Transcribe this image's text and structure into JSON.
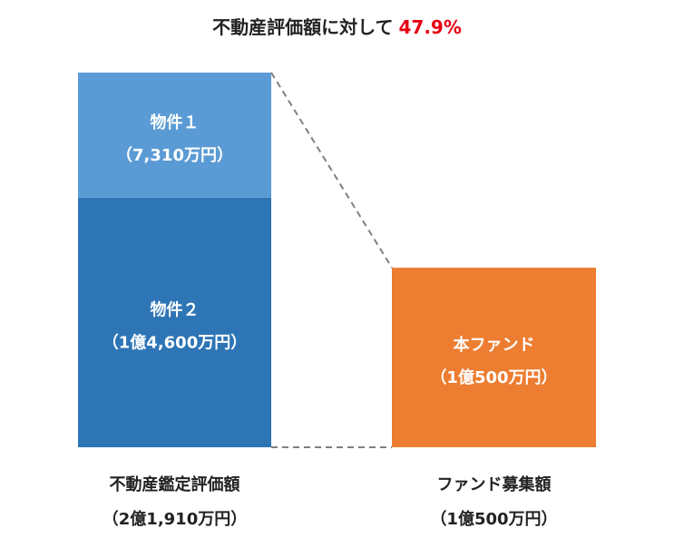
{
  "title": {
    "text": "不動産評価額に対して",
    "ratio": "47.9%",
    "ratio_color": "#e60012"
  },
  "chart_data": {
    "type": "bar",
    "stacked": true,
    "unit": "万円",
    "bars": [
      {
        "name": "不動産鑑定評価額",
        "value_label": "（2億1,910万円）",
        "total": 21910,
        "segments": [
          {
            "name": "物件２",
            "value": 14600,
            "value_label": "（1億4,600万円）",
            "color": "#2e75b6"
          },
          {
            "name": "物件１",
            "value": 7310,
            "value_label": "（7,310万円）",
            "color": "#5b9bd5"
          }
        ]
      },
      {
        "name": "ファンド募集額",
        "value_label": "（1億500万円）",
        "total": 10500,
        "segments": [
          {
            "name": "本ファンド",
            "value": 10500,
            "value_label": "（1億500万円）",
            "color": "#ed7d31"
          }
        ]
      }
    ],
    "connector": "dashed",
    "grid": false,
    "legend": "none"
  }
}
